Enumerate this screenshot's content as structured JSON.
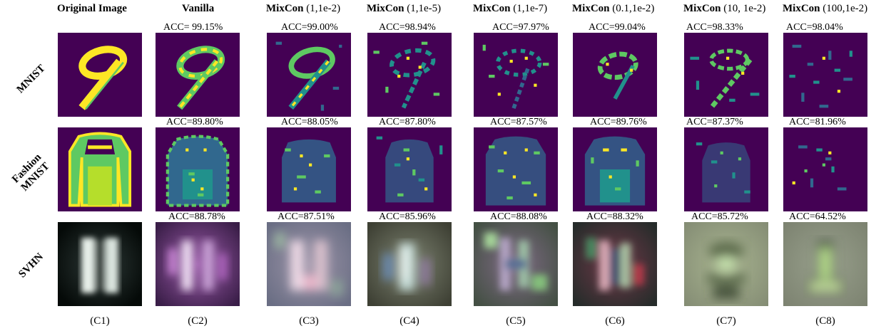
{
  "columns": [
    {
      "id": "C1",
      "bold": "Original Image",
      "suffix": ""
    },
    {
      "id": "C2",
      "bold": "Vanilla",
      "suffix": ""
    },
    {
      "id": "C3",
      "bold": "MixCon",
      "suffix": " (1,1e-2)"
    },
    {
      "id": "C4",
      "bold": "MixCon",
      "suffix": " (1,1e-5)"
    },
    {
      "id": "C5",
      "bold": "MixCon",
      "suffix": " (1,1e-7)"
    },
    {
      "id": "C6",
      "bold": "MixCon",
      "suffix": " (0.1,1e-2)"
    },
    {
      "id": "C7",
      "bold": "MixCon",
      "suffix": " (10, 1e-2)"
    },
    {
      "id": "C8",
      "bold": "MixCon",
      "suffix": " (100,1e-2)"
    }
  ],
  "column_labels": [
    "(C1)",
    "(C2)",
    "(C3)",
    "(C4)",
    "(C5)",
    "(C6)",
    "(C7)",
    "(C8)"
  ],
  "rows": [
    {
      "label_lines": [
        "MNIST"
      ],
      "acc": [
        "ACC= 99.15%",
        "ACC=99.00%",
        "ACC=98.94%",
        "ACC=97.97%",
        "ACC=99.04%",
        "ACC=98.33%",
        "ACC=98.04%"
      ]
    },
    {
      "label_lines": [
        "Fashion",
        "MNIST"
      ],
      "acc": [
        "ACC=89.80%",
        "ACC=88.05%",
        "ACC=87.80%",
        "ACC=87.57%",
        "ACC=89.76%",
        "ACC=87.37%",
        "ACC=81.96%"
      ]
    },
    {
      "label_lines": [
        "SVHN"
      ],
      "acc": [
        "ACC=88.78%",
        "ACC=87.51%",
        "ACC=85.96%",
        "ACC=88.08%",
        "ACC=88.32%",
        "ACC=85.72%",
        "ACC=64.52%"
      ]
    }
  ],
  "palette": {
    "viridis_dark": "#440154",
    "viridis_blue": "#31688e",
    "viridis_teal": "#21918c",
    "viridis_green": "#5ec962",
    "viridis_yellow": "#fde725"
  }
}
